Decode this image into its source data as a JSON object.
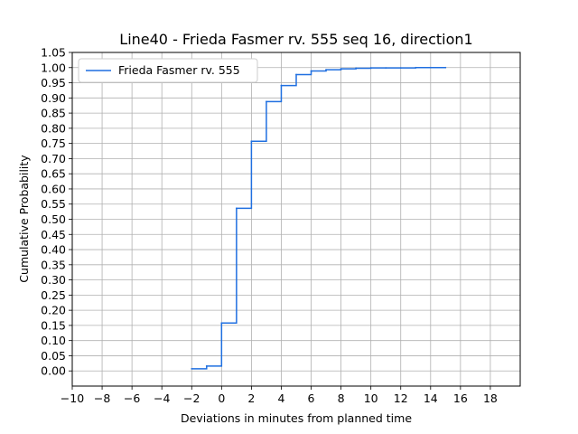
{
  "chart_data": {
    "type": "line",
    "step": "post",
    "title": "Line40 - Frieda Fasmer rv. 555 seq 16, direction1",
    "xlabel": "Deviations in minutes from planned time",
    "ylabel": "Cumulative Probability",
    "xlim": [
      -10,
      20
    ],
    "ylim": [
      -0.05,
      1.05
    ],
    "xticks": [
      -10,
      -8,
      -6,
      -4,
      -2,
      0,
      2,
      4,
      6,
      8,
      10,
      12,
      14,
      16,
      18
    ],
    "yticks": [
      0.0,
      0.05,
      0.1,
      0.15,
      0.2,
      0.25,
      0.3,
      0.35,
      0.4,
      0.45,
      0.5,
      0.55,
      0.6,
      0.65,
      0.7,
      0.75,
      0.8,
      0.85,
      0.9,
      0.95,
      1.0,
      1.05
    ],
    "grid": true,
    "legend": "top-left",
    "series": [
      {
        "name": "Frieda Fasmer rv. 555",
        "color": "#1f6fe0",
        "x": [
          -2,
          -1,
          0,
          1,
          2,
          3,
          4,
          5,
          6,
          7,
          8,
          9,
          10,
          11,
          12,
          13,
          14,
          15
        ],
        "y": [
          0.007,
          0.016,
          0.158,
          0.536,
          0.757,
          0.888,
          0.941,
          0.977,
          0.989,
          0.993,
          0.996,
          0.998,
          0.999,
          0.999,
          0.999,
          1.0,
          1.0,
          1.0
        ]
      }
    ]
  }
}
